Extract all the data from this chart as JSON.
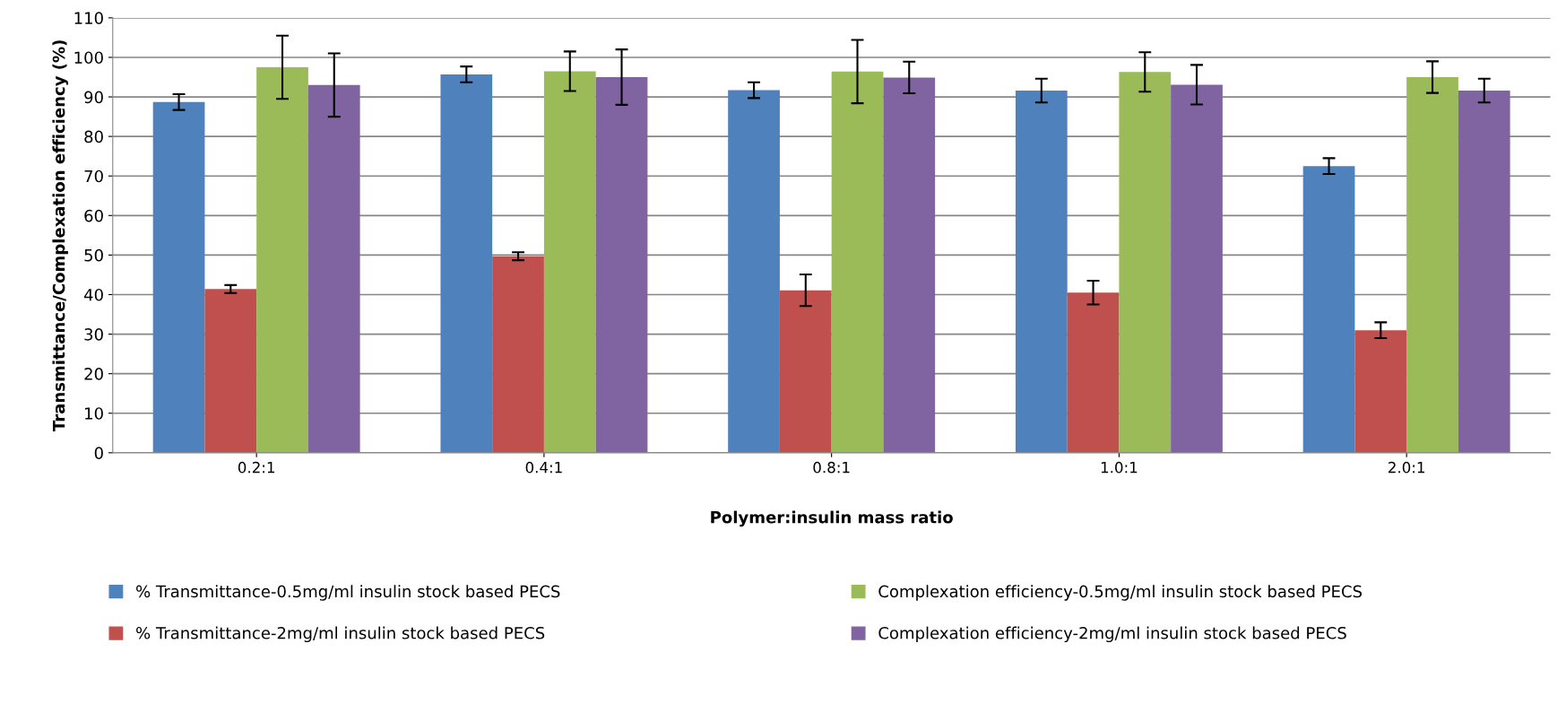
{
  "chart_data": {
    "type": "bar",
    "xlabel": "Polymer:insulin mass ratio",
    "ylabel": "Transmittance/Complexation efficiency (%)",
    "categories": [
      "0.2:1",
      "0.4:1",
      "0.8:1",
      "1.0:1",
      "2.0:1"
    ],
    "series": [
      {
        "name": "% Transmittance-0.5mg/ml insulin stock based PECS",
        "color": "#4f81bd",
        "values": [
          88.7,
          95.7,
          91.7,
          91.6,
          72.5
        ],
        "errors": [
          2,
          2,
          2,
          3,
          2
        ]
      },
      {
        "name": "% Transmittance-2mg/ml insulin stock based PECS",
        "color": "#c0504d",
        "values": [
          41.4,
          49.7,
          41.1,
          40.5,
          31.0
        ],
        "errors": [
          1,
          1,
          4,
          3,
          2
        ]
      },
      {
        "name": "Complexation efficiency-0.5mg/ml insulin stock based PECS",
        "color": "#9bbb59",
        "values": [
          97.5,
          96.5,
          96.4,
          96.3,
          95.0
        ],
        "errors": [
          8,
          5,
          8,
          5,
          4
        ]
      },
      {
        "name": "Complexation efficiency-2mg/ml insulin stock based PECS",
        "color": "#8064a2",
        "values": [
          93.0,
          95.0,
          94.9,
          93.1,
          91.6
        ],
        "errors": [
          8,
          7,
          4,
          5,
          3
        ]
      }
    ],
    "ylim": [
      0,
      110
    ],
    "yticks": [
      0,
      10,
      20,
      30,
      40,
      50,
      60,
      70,
      80,
      90,
      100,
      110
    ],
    "grid": "y",
    "legend": "bottom"
  }
}
